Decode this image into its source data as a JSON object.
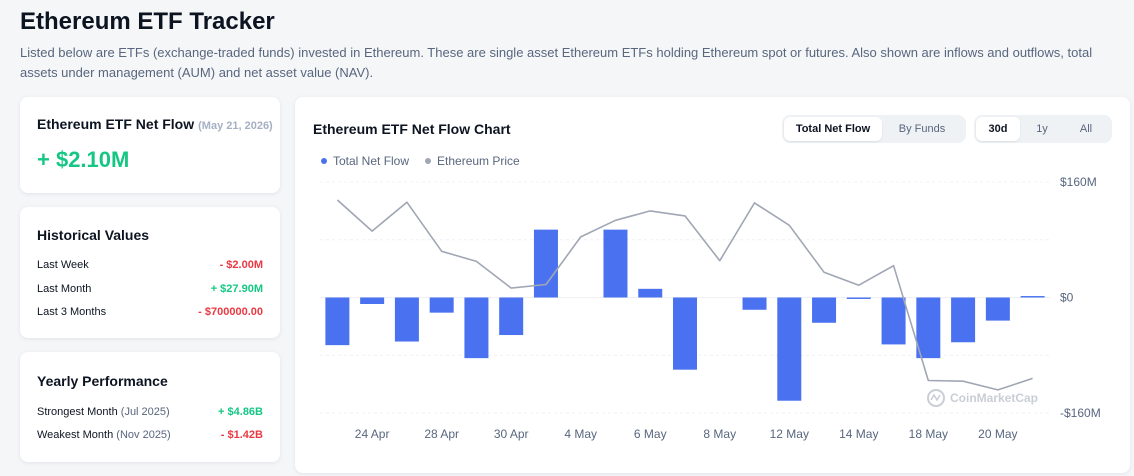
{
  "header": {
    "title": "Ethereum ETF Tracker",
    "description": "Listed below are ETFs (exchange-traded funds) invested in Ethereum. These are single asset Ethereum ETFs holding Ethereum spot or futures. Also shown are inflows and outflows, total assets under management (AUM) and net asset value (NAV)."
  },
  "net_flow_card": {
    "title": "Ethereum ETF Net Flow",
    "date": "(May 21, 2026)",
    "value": "+ $2.10M"
  },
  "historical": {
    "title": "Historical Values",
    "rows": [
      {
        "label": "Last Week",
        "value": "- $2.00M",
        "trend": "negative"
      },
      {
        "label": "Last Month",
        "value": "+ $27.90M",
        "trend": "positive"
      },
      {
        "label": "Last 3 Months",
        "value": "- $700000.00",
        "trend": "negative"
      }
    ]
  },
  "yearly": {
    "title": "Yearly Performance",
    "rows": [
      {
        "label": "Strongest Month",
        "sub": "(Jul 2025)",
        "value": "+ $4.86B",
        "trend": "positive"
      },
      {
        "label": "Weakest Month",
        "sub": "(Nov 2025)",
        "value": "- $1.42B",
        "trend": "negative"
      }
    ]
  },
  "chart_panel": {
    "title": "Ethereum ETF Net Flow Chart",
    "view_tabs": [
      {
        "label": "Total Net Flow",
        "active": true
      },
      {
        "label": "By Funds",
        "active": false
      }
    ],
    "range_tabs": [
      {
        "label": "30d",
        "active": true
      },
      {
        "label": "1y",
        "active": false
      },
      {
        "label": "All",
        "active": false
      }
    ],
    "legend": [
      {
        "label": "Total Net Flow",
        "color": "#4a72f0"
      },
      {
        "label": "Ethereum Price",
        "color": "#a0a6b4"
      }
    ],
    "watermark": "CoinMarketCap"
  },
  "colors": {
    "bar": "#4a72f0",
    "price_line": "#a0a6b4",
    "positive": "#16c784",
    "negative": "#ea3943"
  },
  "chart_data": {
    "type": "bar",
    "title": "Ethereum ETF Net Flow Chart",
    "ylim": [
      -160,
      160
    ],
    "y_ticks": [
      "$160M",
      "$0",
      "-$160M"
    ],
    "x_tick_labels": [
      "24 Apr",
      "28 Apr",
      "30 Apr",
      "4 May",
      "6 May",
      "8 May",
      "12 May",
      "14 May",
      "18 May",
      "20 May"
    ],
    "categories": [
      "23 Apr",
      "24 Apr",
      "27 Apr",
      "28 Apr",
      "29 Apr",
      "30 Apr",
      "1 May",
      "4 May",
      "5 May",
      "6 May",
      "7 May",
      "8 May",
      "11 May",
      "12 May",
      "13 May",
      "14 May",
      "15 May",
      "18 May",
      "19 May",
      "20 May",
      "21 May"
    ],
    "series": [
      {
        "name": "Total Net Flow",
        "unit": "$M",
        "values": [
          -66,
          -9,
          -61,
          -21,
          -84,
          -52,
          94,
          0,
          94,
          12,
          -100,
          0,
          -17,
          -143,
          -35,
          -2,
          -65,
          -84,
          -62,
          -32,
          2
        ]
      },
      {
        "name": "Ethereum Price",
        "values": [
          135,
          92,
          132,
          64,
          50,
          13,
          18,
          84,
          107,
          120,
          113,
          51,
          131,
          100,
          35,
          17,
          44,
          -115,
          -116,
          -128,
          -112
        ]
      }
    ],
    "grid": true,
    "legend_position": "top-left"
  }
}
